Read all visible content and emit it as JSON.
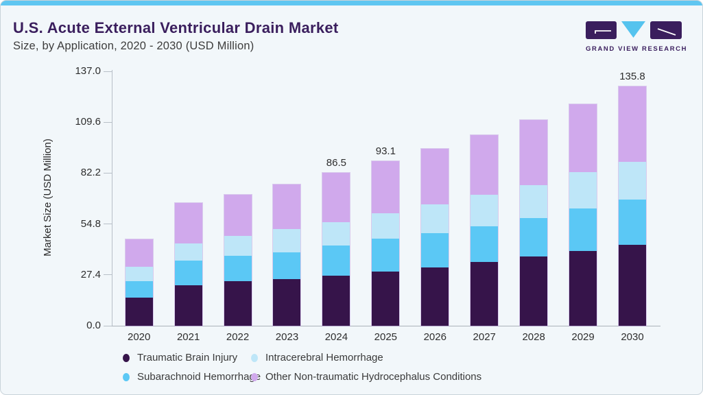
{
  "header": {
    "title": "U.S. Acute External Ventricular Drain Market",
    "subtitle": "Size, by Application, 2020 - 2030 (USD Million)",
    "logo_text": "GRAND VIEW RESEARCH"
  },
  "colors": {
    "card_background": "#F2F7FA",
    "top_accent_bar": "#5FC6F1",
    "brand_purple": "#3A1E5D",
    "logo_triangle_cyan": "#55C3EE",
    "axis_gray": "#B7BFC7"
  },
  "chart_data": {
    "type": "bar",
    "stacked": true,
    "title": "U.S. Acute External Ventricular Drain Market Size, by Application, 2020 - 2030 (USD Million)",
    "xlabel": "",
    "ylabel": "Market Size (USD Million)",
    "ylim": [
      0,
      137.0
    ],
    "grid": false,
    "legend_position": "bottom",
    "y_ticks": [
      "0.0",
      "27.4",
      "54.8",
      "82.2",
      "109.6",
      "137.0"
    ],
    "y_tick_values": [
      0,
      27.4,
      54.8,
      82.2,
      109.6,
      137.0
    ],
    "categories": [
      "2020",
      "2021",
      "2022",
      "2023",
      "2024",
      "2025",
      "2026",
      "2027",
      "2028",
      "2029",
      "2030"
    ],
    "series": [
      {
        "name": "Traumatic Brain Injury",
        "color": "#36144A",
        "values": [
          15.8,
          22.9,
          25.1,
          26.4,
          28.4,
          30.8,
          33.1,
          36.1,
          39.2,
          42.2,
          45.8
        ]
      },
      {
        "name": "Subarachnoid Hemorrhage",
        "color": "#5BC8F5",
        "values": [
          9.3,
          13.9,
          14.4,
          15.3,
          17.2,
          18.4,
          19.2,
          20.4,
          22.0,
          24.2,
          25.8
        ]
      },
      {
        "name": "Intracerebral Hemorrhage",
        "color": "#BEE6F8",
        "values": [
          8.4,
          9.8,
          11.5,
          13.0,
          13.2,
          14.4,
          16.4,
          17.7,
          18.6,
          20.7,
          21.4
        ]
      },
      {
        "name": "Other Non-traumatic Hydrocephalus Conditions",
        "color": "#D0A9EC",
        "values": [
          15.5,
          23.0,
          23.4,
          25.3,
          27.7,
          29.5,
          31.4,
          33.9,
          36.9,
          38.4,
          42.8
        ]
      }
    ],
    "totals_labeled": {
      "2024": "86.5",
      "2025": "93.1",
      "2030": "135.8"
    },
    "legend_order": [
      "Traumatic Brain Injury",
      "Intracerebral Hemorrhage",
      "Subarachnoid Hemorrhage",
      "Other Non-traumatic Hydrocephalus Conditions"
    ]
  }
}
